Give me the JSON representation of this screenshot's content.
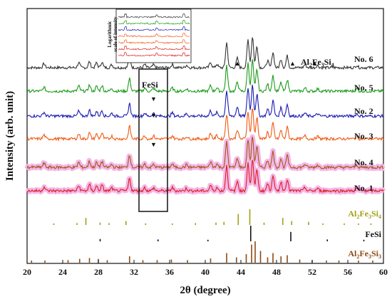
{
  "chart_data": {
    "type": "line",
    "xlabel": "2θ (degree)",
    "ylabel": "Intensity (arb. unit)",
    "xlim": [
      20,
      60
    ],
    "xticks": [
      "20",
      "24",
      "28",
      "32",
      "36",
      "40",
      "44",
      "48",
      "52",
      "56",
      "60"
    ],
    "grid": false,
    "colors": {
      "No. 6": "#333333",
      "No. 5": "#1a9b1a",
      "No. 2": "#1a1ab4",
      "No. 3": "#f05a14",
      "No. 4": "#a05a14",
      "No. 1": "#dc1e1e",
      "Al2Fe3Si4": "#a0a014",
      "FeSi": "#111111",
      "Al2Fe3Si3": "#8c4a14"
    },
    "series": [
      {
        "name": "No. 6",
        "offset": 6
      },
      {
        "name": "No. 5",
        "offset": 5
      },
      {
        "name": "No. 2",
        "offset": 4
      },
      {
        "name": "No. 3",
        "offset": 3
      },
      {
        "name": "No. 4",
        "offset": 2
      },
      {
        "name": "No. 1",
        "offset": 1
      }
    ],
    "peaks": [
      {
        "x": 21.9,
        "h": 0.25
      },
      {
        "x": 25.8,
        "h": 0.32
      },
      {
        "x": 27.0,
        "h": 0.38
      },
      {
        "x": 27.8,
        "h": 0.3
      },
      {
        "x": 28.4,
        "h": 0.36
      },
      {
        "x": 29.5,
        "h": 0.18
      },
      {
        "x": 31.5,
        "h": 0.8
      },
      {
        "x": 33.2,
        "h": 0.2
      },
      {
        "x": 34.2,
        "h": 0.18
      },
      {
        "x": 36.3,
        "h": 0.2
      },
      {
        "x": 37.9,
        "h": 0.16
      },
      {
        "x": 40.6,
        "h": 0.35
      },
      {
        "x": 41.3,
        "h": 0.22
      },
      {
        "x": 42.4,
        "h": 1.6
      },
      {
        "x": 43.6,
        "h": 0.6
      },
      {
        "x": 44.8,
        "h": 1.8
      },
      {
        "x": 45.3,
        "h": 2.0
      },
      {
        "x": 45.8,
        "h": 1.4
      },
      {
        "x": 47.0,
        "h": 0.45
      },
      {
        "x": 47.6,
        "h": 1.0
      },
      {
        "x": 48.5,
        "h": 0.55
      },
      {
        "x": 49.2,
        "h": 0.75
      },
      {
        "x": 51.2,
        "h": 0.2
      },
      {
        "x": 52.6,
        "h": 0.15
      },
      {
        "x": 57.0,
        "h": 0.15
      }
    ],
    "markers": [
      {
        "series": "No. 6",
        "x": 43.6,
        "symbol": "▲"
      },
      {
        "series": "No. 6",
        "x": 49.8,
        "symbol": "▲"
      },
      {
        "series": "No. 6",
        "x": 52.3,
        "symbol": "▲"
      },
      {
        "series": "No. 5",
        "x": 34.2,
        "symbol": "▼"
      },
      {
        "series": "No. 2",
        "x": 34.2,
        "symbol": "▼"
      },
      {
        "series": "No. 3",
        "x": 34.2,
        "symbol": "▼"
      }
    ],
    "annotations": {
      "phase_top": "Al2Fe3Si4",
      "phase_box": "FeSi"
    },
    "reference_patterns": [
      {
        "name": "Al2Fe3Si4",
        "sticks": [
          {
            "x": 23.0,
            "h": 0.1
          },
          {
            "x": 25.6,
            "h": 0.12
          },
          {
            "x": 26.6,
            "h": 0.45
          },
          {
            "x": 28.2,
            "h": 0.15
          },
          {
            "x": 29.2,
            "h": 0.12
          },
          {
            "x": 31.1,
            "h": 0.25
          },
          {
            "x": 33.3,
            "h": 0.1
          },
          {
            "x": 36.3,
            "h": 0.1
          },
          {
            "x": 38.9,
            "h": 0.12
          },
          {
            "x": 41.2,
            "h": 0.15
          },
          {
            "x": 42.1,
            "h": 0.2
          },
          {
            "x": 43.7,
            "h": 0.7
          },
          {
            "x": 45.0,
            "h": 1.0
          },
          {
            "x": 46.6,
            "h": 0.15
          },
          {
            "x": 48.7,
            "h": 0.45
          },
          {
            "x": 49.7,
            "h": 0.25
          },
          {
            "x": 51.6,
            "h": 0.2
          },
          {
            "x": 53.2,
            "h": 0.1
          },
          {
            "x": 55.6,
            "h": 0.1
          },
          {
            "x": 57.2,
            "h": 0.1
          },
          {
            "x": 58.6,
            "h": 0.1
          }
        ]
      },
      {
        "name": "FeSi",
        "sticks": [
          {
            "x": 28.2,
            "h": 0.15
          },
          {
            "x": 34.7,
            "h": 0.12
          },
          {
            "x": 40.3,
            "h": 0.1
          },
          {
            "x": 45.1,
            "h": 1.0
          },
          {
            "x": 49.6,
            "h": 0.6
          },
          {
            "x": 53.7,
            "h": 0.12
          },
          {
            "x": 57.8,
            "h": 0.1
          }
        ]
      },
      {
        "name": "Al2Fe3Si3",
        "sticks": [
          {
            "x": 20.5,
            "h": 0.1
          },
          {
            "x": 22.0,
            "h": 0.1
          },
          {
            "x": 24.6,
            "h": 0.12
          },
          {
            "x": 25.9,
            "h": 0.18
          },
          {
            "x": 27.0,
            "h": 0.22
          },
          {
            "x": 28.0,
            "h": 0.18
          },
          {
            "x": 29.0,
            "h": 0.12
          },
          {
            "x": 31.5,
            "h": 0.3
          },
          {
            "x": 33.0,
            "h": 0.12
          },
          {
            "x": 34.6,
            "h": 0.12
          },
          {
            "x": 36.2,
            "h": 0.15
          },
          {
            "x": 38.0,
            "h": 0.12
          },
          {
            "x": 40.6,
            "h": 0.2
          },
          {
            "x": 42.4,
            "h": 0.45
          },
          {
            "x": 43.5,
            "h": 0.25
          },
          {
            "x": 44.6,
            "h": 0.4
          },
          {
            "x": 45.2,
            "h": 0.85
          },
          {
            "x": 45.6,
            "h": 1.0
          },
          {
            "x": 46.2,
            "h": 0.55
          },
          {
            "x": 47.0,
            "h": 0.25
          },
          {
            "x": 47.6,
            "h": 0.45
          },
          {
            "x": 48.5,
            "h": 0.3
          },
          {
            "x": 49.2,
            "h": 0.35
          },
          {
            "x": 50.6,
            "h": 0.15
          },
          {
            "x": 52.0,
            "h": 0.12
          },
          {
            "x": 53.6,
            "h": 0.1
          },
          {
            "x": 55.0,
            "h": 0.1
          },
          {
            "x": 57.2,
            "h": 0.1
          },
          {
            "x": 58.8,
            "h": 0.1
          }
        ]
      }
    ],
    "inset": {
      "title_lines": [
        "Logarithmic",
        "scale of intensity"
      ]
    }
  }
}
